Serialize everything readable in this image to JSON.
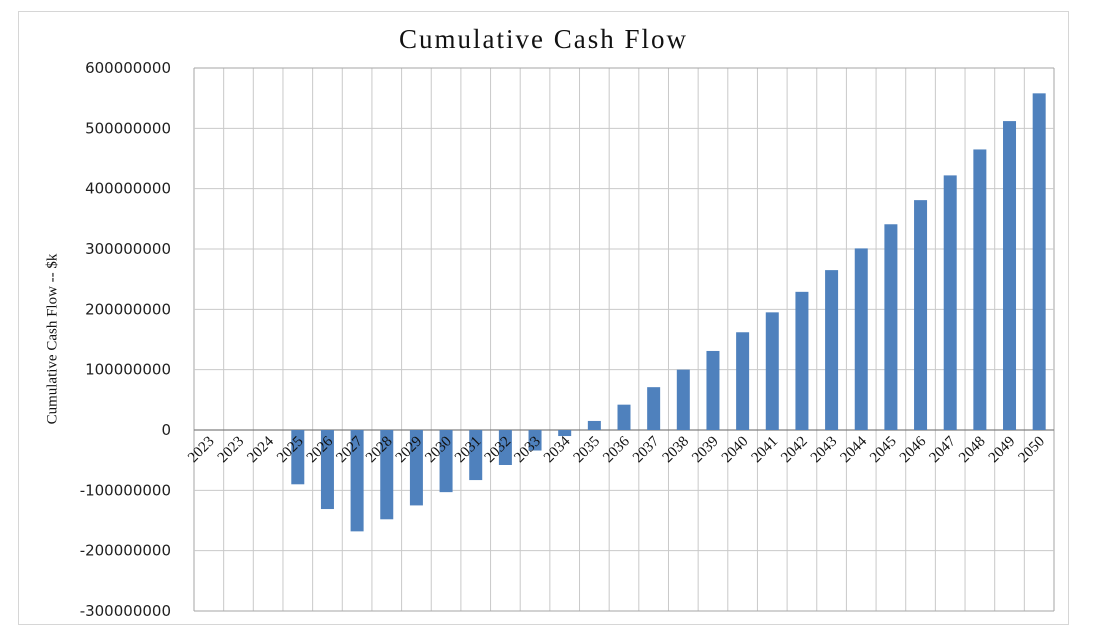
{
  "figure": {
    "title": "Cumulative Cash Flow"
  },
  "chart_data": {
    "type": "bar",
    "title": "Cumulative Cash Flow",
    "xlabel": "",
    "ylabel": "Cumulative Cash Flow -- $k",
    "legend": false,
    "grid": true,
    "ylim": [
      -300000000,
      600000000
    ],
    "ytick_step": 100000000,
    "ytick_labels": [
      "600000000",
      "500000000",
      "400000000",
      "300000000",
      "200000000",
      "100000000",
      "0",
      "-100000000",
      "-200000000",
      "-300000000"
    ],
    "categories": [
      "2023",
      "2023",
      "2024",
      "2025",
      "2026",
      "2027",
      "2028",
      "2029",
      "2030",
      "2031",
      "2032",
      "2033",
      "2034",
      "2035",
      "2036",
      "2037",
      "2038",
      "2039",
      "2040",
      "2041",
      "2042",
      "2043",
      "2044",
      "2045",
      "2046",
      "2047",
      "2048",
      "2049",
      "2050"
    ],
    "values": [
      0,
      0,
      0,
      -90000000,
      -131000000,
      -168000000,
      -148000000,
      -125000000,
      -103000000,
      -83000000,
      -58000000,
      -34000000,
      -10000000,
      15000000,
      42000000,
      71000000,
      100000000,
      131000000,
      162000000,
      195000000,
      229000000,
      265000000,
      301000000,
      341000000,
      381000000,
      422000000,
      465000000,
      512000000,
      558000000
    ],
    "colors": {
      "bar": "#4f81bd",
      "gridline": "#c9c9c9",
      "plot_border": "#a6a6a6",
      "zero_axis": "#808080",
      "figure_border": "#d6d6d6"
    }
  }
}
